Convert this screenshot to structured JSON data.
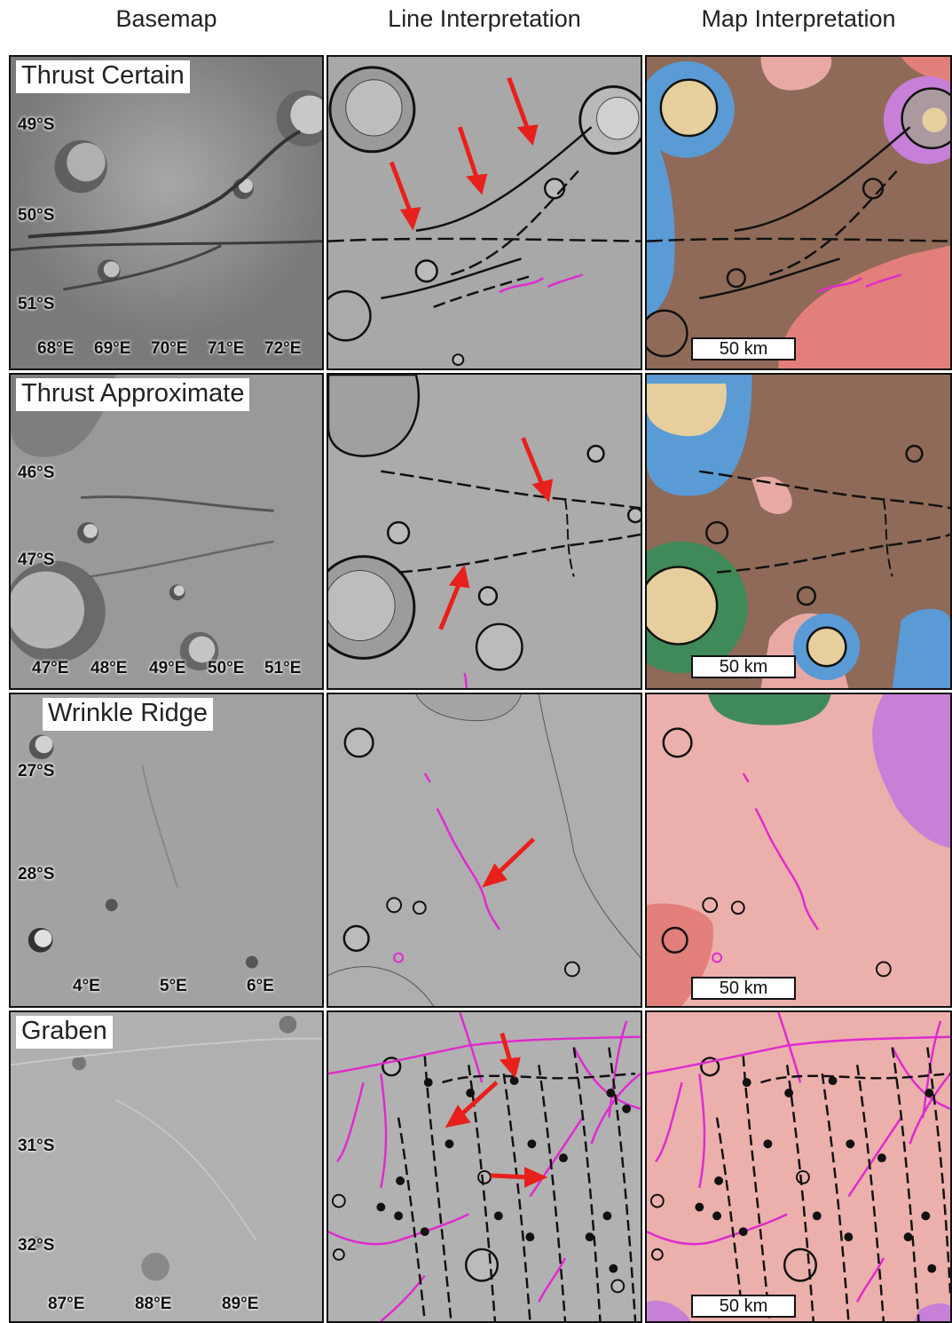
{
  "columns": [
    "Basemap",
    "Line Interpretation",
    "Map Interpretation"
  ],
  "rows": [
    {
      "label": "Thrust Certain",
      "lat_labels": [
        "49°S",
        "50°S",
        "51°S"
      ],
      "lon_labels": [
        "68°E",
        "69°E",
        "70°E",
        "71°E",
        "72°E"
      ]
    },
    {
      "label": "Thrust Approximate",
      "lat_labels": [
        "46°S",
        "47°S"
      ],
      "lon_labels": [
        "47°E",
        "48°E",
        "49°E",
        "50°E",
        "51°E"
      ]
    },
    {
      "label": "Wrinkle Ridge",
      "lat_labels": [
        "27°S",
        "28°S"
      ],
      "lon_labels": [
        "4°E",
        "5°E",
        "6°E"
      ]
    },
    {
      "label": "Graben",
      "lat_labels": [
        "31°S",
        "32°S"
      ],
      "lon_labels": [
        "87°E",
        "88°E",
        "89°E"
      ]
    }
  ],
  "scale_bar": "50 km",
  "colors": {
    "brown_unit": "#8f6a58",
    "pink_unit": "#e8a9a5",
    "red_unit": "#e27f7a",
    "blue_unit": "#5a9bd5",
    "tan_unit": "#e6cf9c",
    "green_unit": "#3f8a58",
    "violet_unit": "#c77fd8",
    "ridge_line": "#e02ad0",
    "arrow": "#e8201c"
  }
}
